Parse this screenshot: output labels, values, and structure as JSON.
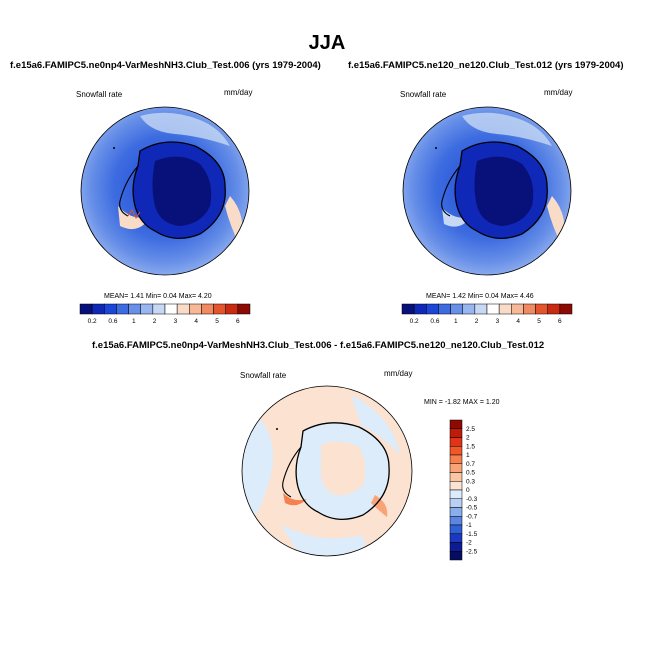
{
  "page_title": "JJA",
  "panels": [
    {
      "title": "f.e15a6.FAMIPC5.ne0np4-VarMeshNH3.Club_Test.006 (yrs 1979-2004)",
      "variable": "Snowfall rate",
      "units": "mm/day",
      "stats": {
        "mean_label": "MEAN=",
        "mean": "1.41",
        "min_label": "Min=",
        "min": "0.04",
        "max_label": "Max=",
        "max": "4.20"
      }
    },
    {
      "title": "f.e15a6.FAMIPC5.ne120_ne120.Club_Test.012 (yrs 1979-2004)",
      "variable": "Snowfall rate",
      "units": "mm/day",
      "stats": {
        "mean_label": "MEAN=",
        "mean": "1.42",
        "min_label": "Min=",
        "min": "0.04",
        "max_label": "Max=",
        "max": "4.46"
      }
    },
    {
      "title": "f.e15a6.FAMIPC5.ne0np4-VarMeshNH3.Club_Test.006 - f.e15a6.FAMIPC5.ne120_ne120.Club_Test.012",
      "variable": "Snowfall rate",
      "units": "mm/day",
      "stats": {
        "min_label": "MIN =",
        "min": "-1.82",
        "max_label": "MAX =",
        "max": "1.20"
      }
    }
  ],
  "abs_colorbar": {
    "labels": [
      "0.2",
      "0.6",
      "1",
      "2",
      "3",
      "4",
      "5",
      "6"
    ],
    "colors": [
      "#08107a",
      "#1028b8",
      "#1c46d8",
      "#3d6ce0",
      "#6890e8",
      "#9ab6f0",
      "#c6d8f4",
      "#ffffff",
      "#f8dcc8",
      "#f6b896",
      "#f08a62",
      "#e4552e",
      "#c82a12",
      "#8c0a04"
    ]
  },
  "diff_colorbar": {
    "labels": [
      "2.5",
      "2",
      "1.5",
      "1",
      "0.7",
      "0.5",
      "0.3",
      "0",
      "-0.3",
      "-0.5",
      "-0.7",
      "-1",
      "-1.5",
      "-2",
      "-2.5"
    ],
    "colors": [
      "#8c0a04",
      "#c01a08",
      "#e03416",
      "#f0582c",
      "#f6804e",
      "#f8a478",
      "#fac6a4",
      "#fce2d0",
      "#dcecfb",
      "#b8d0f4",
      "#8aaeec",
      "#5a86e2",
      "#3060d8",
      "#1a38c0",
      "#0c1c94",
      "#060c60"
    ]
  }
}
